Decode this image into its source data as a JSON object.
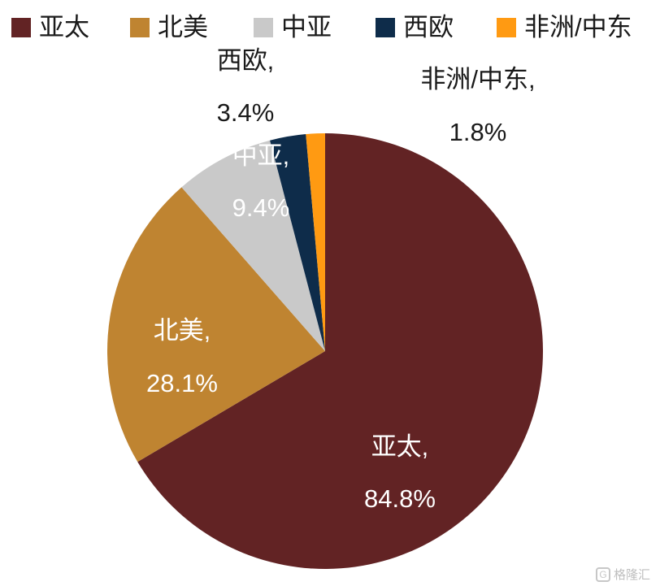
{
  "chart_data": {
    "type": "pie",
    "legend_position": "top",
    "slices": [
      {
        "name": "亚太",
        "value_label": "84.8%",
        "color": "#622324",
        "label_color": "#ffffff"
      },
      {
        "name": "北美",
        "value_label": "28.1%",
        "color": "#bf8431",
        "label_color": "#ffffff"
      },
      {
        "name": "中亚",
        "value_label": "9.4%",
        "color": "#c9c9c9",
        "label_color": "#ffffff"
      },
      {
        "name": "西欧",
        "value_label": "3.4%",
        "color": "#0e2c4a",
        "label_color": "#1a1a1a"
      },
      {
        "name": "非洲/中东",
        "value_label": "1.8%",
        "color": "#ff9a12",
        "label_color": "#1a1a1a"
      }
    ],
    "label_suffix": ","
  },
  "legend": {
    "items": [
      {
        "label": "亚太",
        "color": "#622324"
      },
      {
        "label": "北美",
        "color": "#bf8431"
      },
      {
        "label": "中亚",
        "color": "#c9c9c9"
      },
      {
        "label": "西欧",
        "color": "#0e2c4a"
      },
      {
        "label": "非洲/中东",
        "color": "#ff9a12"
      }
    ]
  },
  "watermark": {
    "text": "格隆汇",
    "icon": "brand-logo-icon"
  }
}
